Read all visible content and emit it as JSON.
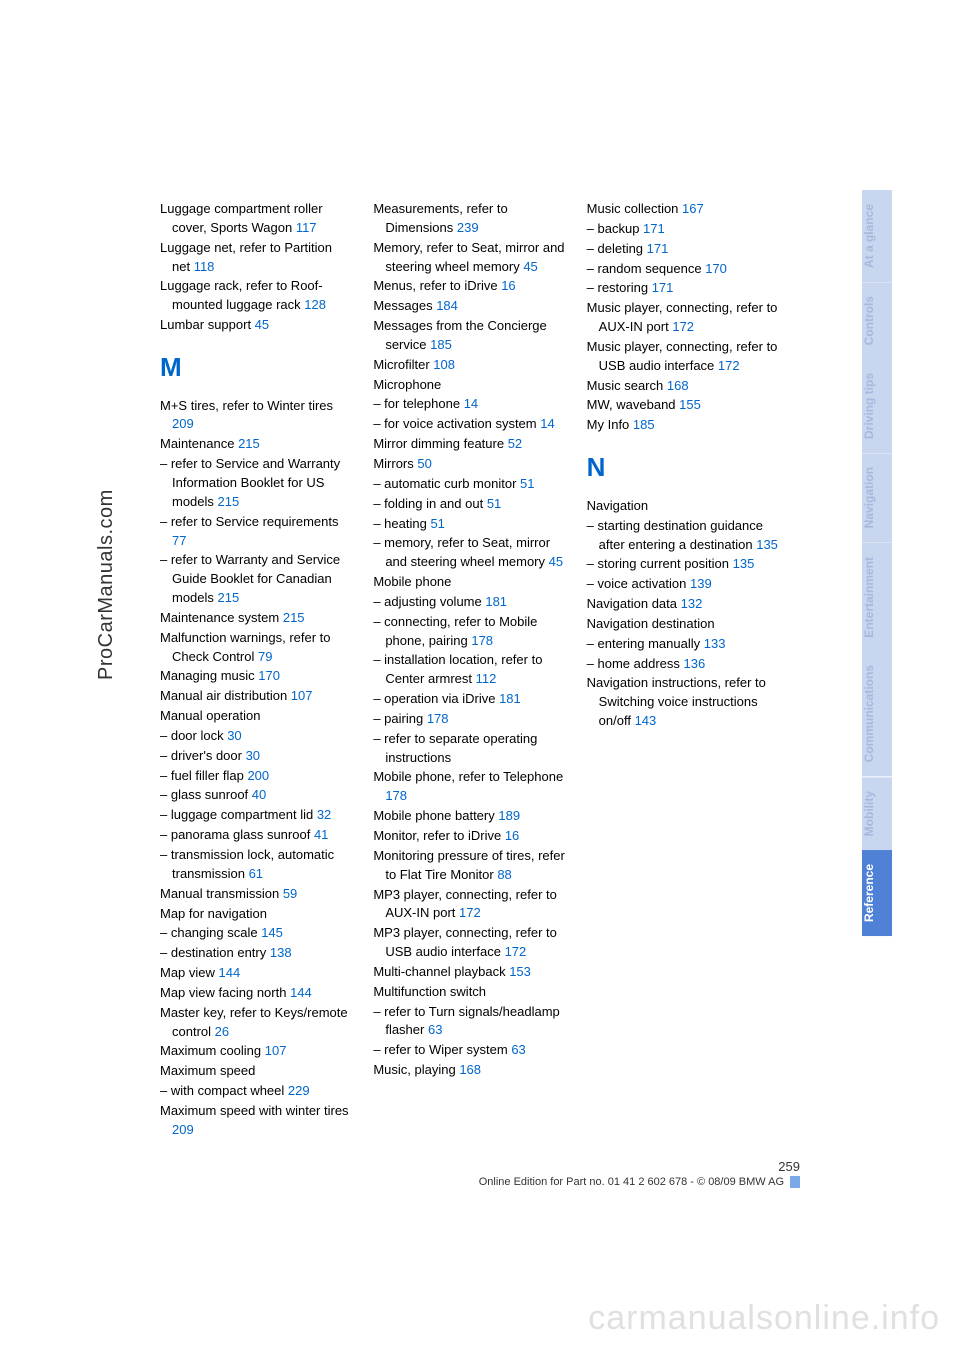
{
  "vertical_label": "ProCarManuals.com",
  "watermark": "carmanualsonline.info",
  "page_number": "259",
  "footer_line": "Online Edition for Part no. 01 41 2 602 678 - © 08/09 BMW AG",
  "link_color": "#0066cc",
  "tab_inactive_bg": "#c9d6f0",
  "tab_inactive_fg": "#a8b8dd",
  "tab_active_bg": "#4f81d6",
  "tabs": [
    {
      "label": "At a glance",
      "active": false
    },
    {
      "label": "Controls",
      "active": false
    },
    {
      "label": "Driving tips",
      "active": false
    },
    {
      "label": "Navigation",
      "active": false
    },
    {
      "label": "Entertainment",
      "active": false
    },
    {
      "label": "Communications",
      "active": false
    },
    {
      "label": "Mobility",
      "active": false
    },
    {
      "label": "Reference",
      "active": true
    }
  ],
  "columns": [
    [
      {
        "t": "entry",
        "text": "Luggage compartment roller cover, Sports Wagon ",
        "ref": "117"
      },
      {
        "t": "entry",
        "text": "Luggage net, refer to Partition net ",
        "ref": "118"
      },
      {
        "t": "entry",
        "text": "Luggage rack, refer to Roof-mounted luggage rack ",
        "ref": "128"
      },
      {
        "t": "entry",
        "text": "Lumbar support ",
        "ref": "45"
      },
      {
        "t": "head",
        "text": "M"
      },
      {
        "t": "entry",
        "text": "M+S tires, refer to Winter tires ",
        "ref": "209"
      },
      {
        "t": "entry",
        "text": "Maintenance ",
        "ref": "215"
      },
      {
        "t": "entry",
        "text": "– refer to Service and Warranty Information Booklet for US models ",
        "ref": "215"
      },
      {
        "t": "entry",
        "text": "– refer to Service requirements ",
        "ref": "77"
      },
      {
        "t": "entry",
        "text": "– refer to Warranty and Service Guide Booklet for Canadian models ",
        "ref": "215"
      },
      {
        "t": "entry",
        "text": "Maintenance system ",
        "ref": "215"
      },
      {
        "t": "entry",
        "text": "Malfunction warnings, refer to Check Control ",
        "ref": "79"
      },
      {
        "t": "entry",
        "text": "Managing music ",
        "ref": "170"
      },
      {
        "t": "entry",
        "text": "Manual air distribution ",
        "ref": "107"
      },
      {
        "t": "entry",
        "text": "Manual operation",
        "ref": ""
      },
      {
        "t": "entry",
        "text": "– door lock ",
        "ref": "30"
      },
      {
        "t": "entry",
        "text": "– driver's door ",
        "ref": "30"
      },
      {
        "t": "entry",
        "text": "– fuel filler flap ",
        "ref": "200"
      },
      {
        "t": "entry",
        "text": "– glass sunroof ",
        "ref": "40"
      },
      {
        "t": "entry",
        "text": "– luggage compartment lid ",
        "ref": "32"
      },
      {
        "t": "entry",
        "text": "– panorama glass sunroof ",
        "ref": "41"
      },
      {
        "t": "entry",
        "text": "– transmission lock, automatic transmission ",
        "ref": "61"
      },
      {
        "t": "entry",
        "text": "Manual transmission ",
        "ref": "59"
      },
      {
        "t": "entry",
        "text": "Map for navigation",
        "ref": ""
      },
      {
        "t": "entry",
        "text": "– changing scale ",
        "ref": "145"
      },
      {
        "t": "entry",
        "text": "– destination entry ",
        "ref": "138"
      },
      {
        "t": "entry",
        "text": "Map view ",
        "ref": "144"
      },
      {
        "t": "entry",
        "text": "Map view facing north ",
        "ref": "144"
      },
      {
        "t": "entry",
        "text": "Master key, refer to Keys/remote control ",
        "ref": "26"
      },
      {
        "t": "entry",
        "text": "Maximum cooling ",
        "ref": "107"
      },
      {
        "t": "entry",
        "text": "Maximum speed",
        "ref": ""
      },
      {
        "t": "entry",
        "text": "– with compact wheel ",
        "ref": "229"
      },
      {
        "t": "entry",
        "text": "Maximum speed with winter tires ",
        "ref": "209"
      }
    ],
    [
      {
        "t": "entry",
        "text": "Measurements, refer to Dimensions ",
        "ref": "239"
      },
      {
        "t": "entry",
        "text": "Memory, refer to Seat, mirror and steering wheel memory ",
        "ref": "45"
      },
      {
        "t": "entry",
        "text": "Menus, refer to iDrive ",
        "ref": "16"
      },
      {
        "t": "entry",
        "text": "Messages ",
        "ref": "184"
      },
      {
        "t": "entry",
        "text": "Messages from the Concierge service ",
        "ref": "185"
      },
      {
        "t": "entry",
        "text": "Microfilter ",
        "ref": "108"
      },
      {
        "t": "entry",
        "text": "Microphone",
        "ref": ""
      },
      {
        "t": "entry",
        "text": "– for telephone ",
        "ref": "14"
      },
      {
        "t": "entry",
        "text": "– for voice activation system ",
        "ref": "14"
      },
      {
        "t": "entry",
        "text": "Mirror dimming feature ",
        "ref": "52"
      },
      {
        "t": "entry",
        "text": "Mirrors ",
        "ref": "50"
      },
      {
        "t": "entry",
        "text": "– automatic curb monitor ",
        "ref": "51"
      },
      {
        "t": "entry",
        "text": "– folding in and out ",
        "ref": "51"
      },
      {
        "t": "entry",
        "text": "– heating ",
        "ref": "51"
      },
      {
        "t": "entry",
        "text": "– memory, refer to Seat, mirror and steering wheel memory ",
        "ref": "45"
      },
      {
        "t": "entry",
        "text": "Mobile phone",
        "ref": ""
      },
      {
        "t": "entry",
        "text": "– adjusting volume ",
        "ref": "181"
      },
      {
        "t": "entry",
        "text": "– connecting, refer to Mobile phone, pairing ",
        "ref": "178"
      },
      {
        "t": "entry",
        "text": "– installation location, refer to Center armrest ",
        "ref": "112"
      },
      {
        "t": "entry",
        "text": "– operation via iDrive ",
        "ref": "181"
      },
      {
        "t": "entry",
        "text": "– pairing ",
        "ref": "178"
      },
      {
        "t": "entry",
        "text": "– refer to separate operating instructions",
        "ref": ""
      },
      {
        "t": "entry",
        "text": "Mobile phone, refer to Telephone ",
        "ref": "178"
      },
      {
        "t": "entry",
        "text": "Mobile phone battery ",
        "ref": "189"
      },
      {
        "t": "entry",
        "text": "Monitor, refer to iDrive ",
        "ref": "16"
      },
      {
        "t": "entry",
        "text": "Monitoring pressure of tires, refer to Flat Tire Monitor ",
        "ref": "88"
      },
      {
        "t": "entry",
        "text": "MP3 player, connecting, refer to AUX-IN port ",
        "ref": "172"
      },
      {
        "t": "entry",
        "text": "MP3 player, connecting, refer to USB audio interface ",
        "ref": "172"
      },
      {
        "t": "entry",
        "text": "Multi-channel playback ",
        "ref": "153"
      },
      {
        "t": "entry",
        "text": "Multifunction switch",
        "ref": ""
      },
      {
        "t": "entry",
        "text": "– refer to Turn signals/headlamp flasher ",
        "ref": "63"
      },
      {
        "t": "entry",
        "text": "– refer to Wiper system ",
        "ref": "63"
      },
      {
        "t": "entry",
        "text": "Music, playing ",
        "ref": "168"
      }
    ],
    [
      {
        "t": "entry",
        "text": "Music collection ",
        "ref": "167"
      },
      {
        "t": "entry",
        "text": "– backup ",
        "ref": "171"
      },
      {
        "t": "entry",
        "text": "– deleting ",
        "ref": "171"
      },
      {
        "t": "entry",
        "text": "– random sequence ",
        "ref": "170"
      },
      {
        "t": "entry",
        "text": "– restoring ",
        "ref": "171"
      },
      {
        "t": "entry",
        "text": "Music player, connecting, refer to AUX-IN port ",
        "ref": "172"
      },
      {
        "t": "entry",
        "text": "Music player, connecting, refer to USB audio interface ",
        "ref": "172"
      },
      {
        "t": "entry",
        "text": "Music search ",
        "ref": "168"
      },
      {
        "t": "entry",
        "text": "MW, waveband ",
        "ref": "155"
      },
      {
        "t": "entry",
        "text": "My Info ",
        "ref": "185"
      },
      {
        "t": "head",
        "text": "N"
      },
      {
        "t": "entry",
        "text": "Navigation",
        "ref": ""
      },
      {
        "t": "entry",
        "text": "– starting destination guidance after entering a destination ",
        "ref": "135"
      },
      {
        "t": "entry",
        "text": "– storing current position ",
        "ref": "135"
      },
      {
        "t": "entry",
        "text": "– voice activation ",
        "ref": "139"
      },
      {
        "t": "entry",
        "text": "Navigation data ",
        "ref": "132"
      },
      {
        "t": "entry",
        "text": "Navigation destination",
        "ref": ""
      },
      {
        "t": "entry",
        "text": "– entering manually ",
        "ref": "133"
      },
      {
        "t": "entry",
        "text": "– home address ",
        "ref": "136"
      },
      {
        "t": "entry",
        "text": "Navigation instructions, refer to Switching voice instructions on/off ",
        "ref": "143"
      }
    ]
  ]
}
